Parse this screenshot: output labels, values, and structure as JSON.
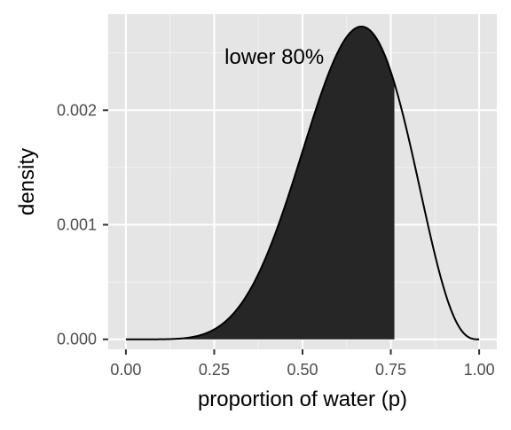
{
  "chart_data": {
    "type": "area",
    "xlabel": "proportion of water (p)",
    "ylabel": "density",
    "annotation": "lower 80%",
    "xlim": [
      -0.05,
      1.05
    ],
    "ylim": [
      -8.72e-05,
      0.002838
    ],
    "x_ticks": [
      0,
      0.25,
      0.5,
      0.75,
      1
    ],
    "x_tick_labels": [
      "0.00",
      "0.25",
      "0.50",
      "0.75",
      "1.00"
    ],
    "y_ticks": [
      0,
      0.001,
      0.002
    ],
    "y_tick_labels": [
      "0.000",
      "0.001",
      "0.002"
    ],
    "shade_upper_p": 0.76,
    "curve": {
      "description_function": "density proportional to p^6 (1-p)^3",
      "peak_x": 0.667,
      "peak_y": 0.00273
    },
    "grid": true,
    "legend": "none",
    "colors": {
      "panel_background": "#e5e5e5",
      "grid_major": "#ffffff",
      "shade": "#262626",
      "line": "#000000"
    }
  }
}
